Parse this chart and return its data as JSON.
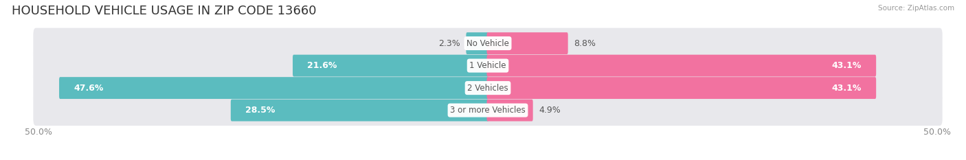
{
  "title": "HOUSEHOLD VEHICLE USAGE IN ZIP CODE 13660",
  "source": "Source: ZipAtlas.com",
  "categories": [
    "No Vehicle",
    "1 Vehicle",
    "2 Vehicles",
    "3 or more Vehicles"
  ],
  "owner_values": [
    2.3,
    21.6,
    47.6,
    28.5
  ],
  "renter_values": [
    8.8,
    43.1,
    43.1,
    4.9
  ],
  "owner_color": "#5bbcbf",
  "renter_color": "#f272a0",
  "bar_bg_color": "#e8e8ec",
  "axis_limit": 50.0,
  "title_fontsize": 13,
  "label_fontsize": 9,
  "cat_fontsize": 8.5,
  "bar_height": 0.78,
  "background_color": "#ffffff",
  "grid_color": "#d8d8de",
  "row_sep_color": "#d8d8de"
}
